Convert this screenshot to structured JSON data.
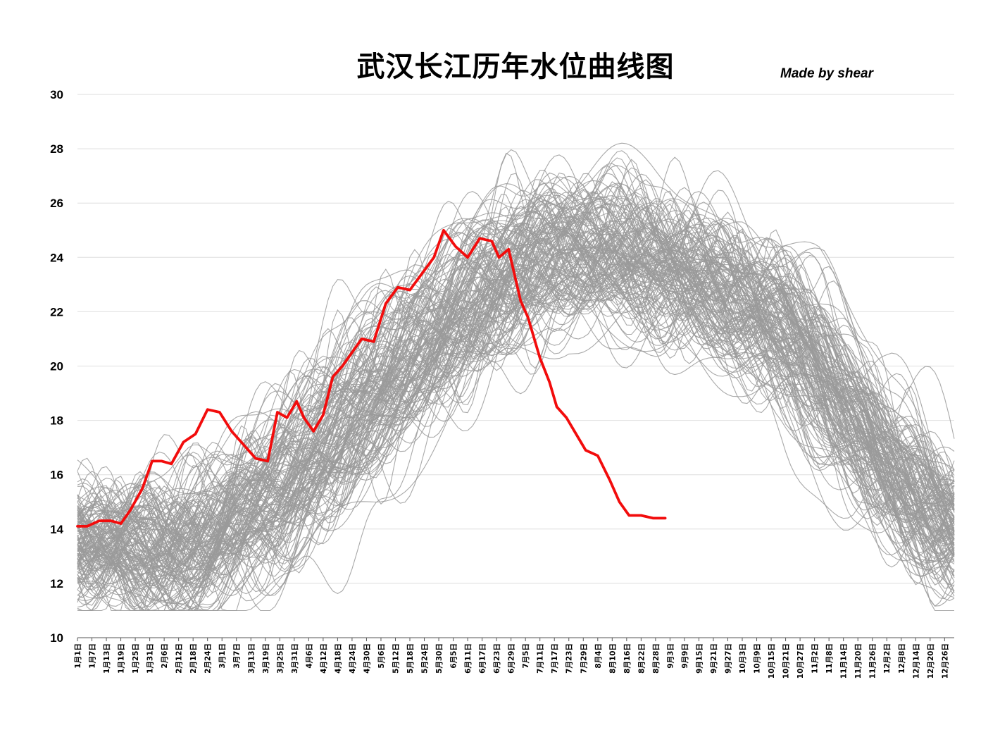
{
  "chart_data": {
    "type": "line",
    "title": "武汉长江历年水位曲线图",
    "credit": "Made by shear",
    "xlabel": "",
    "ylabel": "",
    "ylim": [
      10,
      30
    ],
    "yticks": [
      10,
      12,
      14,
      16,
      18,
      20,
      22,
      24,
      26,
      28,
      30
    ],
    "grid": true,
    "x_tick_labels": [
      "1月1日",
      "1月7日",
      "1月13日",
      "1月19日",
      "1月25日",
      "1月31日",
      "2月6日",
      "2月12日",
      "2月18日",
      "2月24日",
      "3月1日",
      "3月7日",
      "3月13日",
      "3月19日",
      "3月25日",
      "3月31日",
      "4月6日",
      "4月12日",
      "4月18日",
      "4月24日",
      "4月30日",
      "5月6日",
      "5月12日",
      "5月18日",
      "5月24日",
      "5月30日",
      "6月5日",
      "6月11日",
      "6月17日",
      "6月23日",
      "6月29日",
      "7月5日",
      "7月11日",
      "7月17日",
      "7月23日",
      "7月29日",
      "8月4日",
      "8月10日",
      "8月16日",
      "8月22日",
      "8月28日",
      "9月3日",
      "9月9日",
      "9月15日",
      "9月21日",
      "9月27日",
      "10月3日",
      "10月9日",
      "10月15日",
      "10月21日",
      "10月27日",
      "11月2日",
      "11月8日",
      "11月14日",
      "11月20日",
      "11月26日",
      "12月2日",
      "12月8日",
      "12月14日",
      "12月20日",
      "12月26日"
    ],
    "historical_envelope": {
      "day": [
        1,
        30,
        60,
        90,
        120,
        150,
        180,
        200,
        230,
        270,
        300,
        330,
        365
      ],
      "median": [
        13.6,
        13.0,
        13.8,
        15.8,
        18.5,
        21.3,
        23.2,
        24.5,
        24.0,
        22.8,
        21.0,
        17.0,
        13.8
      ],
      "spread": [
        1.6,
        1.6,
        2.0,
        2.4,
        2.4,
        2.3,
        2.2,
        2.0,
        2.0,
        2.0,
        2.0,
        1.8,
        1.5
      ]
    },
    "series": [
      {
        "highlight": true,
        "color": "#f20c0c",
        "day": [
          1,
          5,
          10,
          15,
          19,
          23,
          28,
          32,
          36,
          40,
          45,
          50,
          55,
          60,
          65,
          70,
          75,
          80,
          84,
          88,
          92,
          95,
          99,
          103,
          107,
          111,
          115,
          119,
          124,
          129,
          134,
          139,
          144,
          149,
          153,
          158,
          163,
          168,
          173,
          176,
          180,
          185,
          188,
          193,
          197,
          200,
          204,
          208,
          212,
          217,
          222,
          226,
          230,
          235,
          240,
          245
        ],
        "values": [
          14.1,
          14.1,
          14.3,
          14.3,
          14.2,
          14.7,
          15.5,
          16.5,
          16.5,
          16.4,
          17.2,
          17.5,
          18.4,
          18.3,
          17.6,
          17.1,
          16.6,
          16.5,
          18.3,
          18.1,
          18.7,
          18.1,
          17.6,
          18.2,
          19.6,
          20.0,
          20.5,
          21.0,
          20.9,
          22.3,
          22.9,
          22.8,
          23.4,
          24.0,
          25.0,
          24.4,
          24.0,
          24.7,
          24.6,
          24.0,
          24.3,
          22.4,
          21.8,
          20.3,
          19.4,
          18.5,
          18.1,
          17.5,
          16.9,
          16.7,
          15.8,
          15.0,
          14.5,
          14.5,
          14.4,
          14.4
        ]
      }
    ]
  }
}
